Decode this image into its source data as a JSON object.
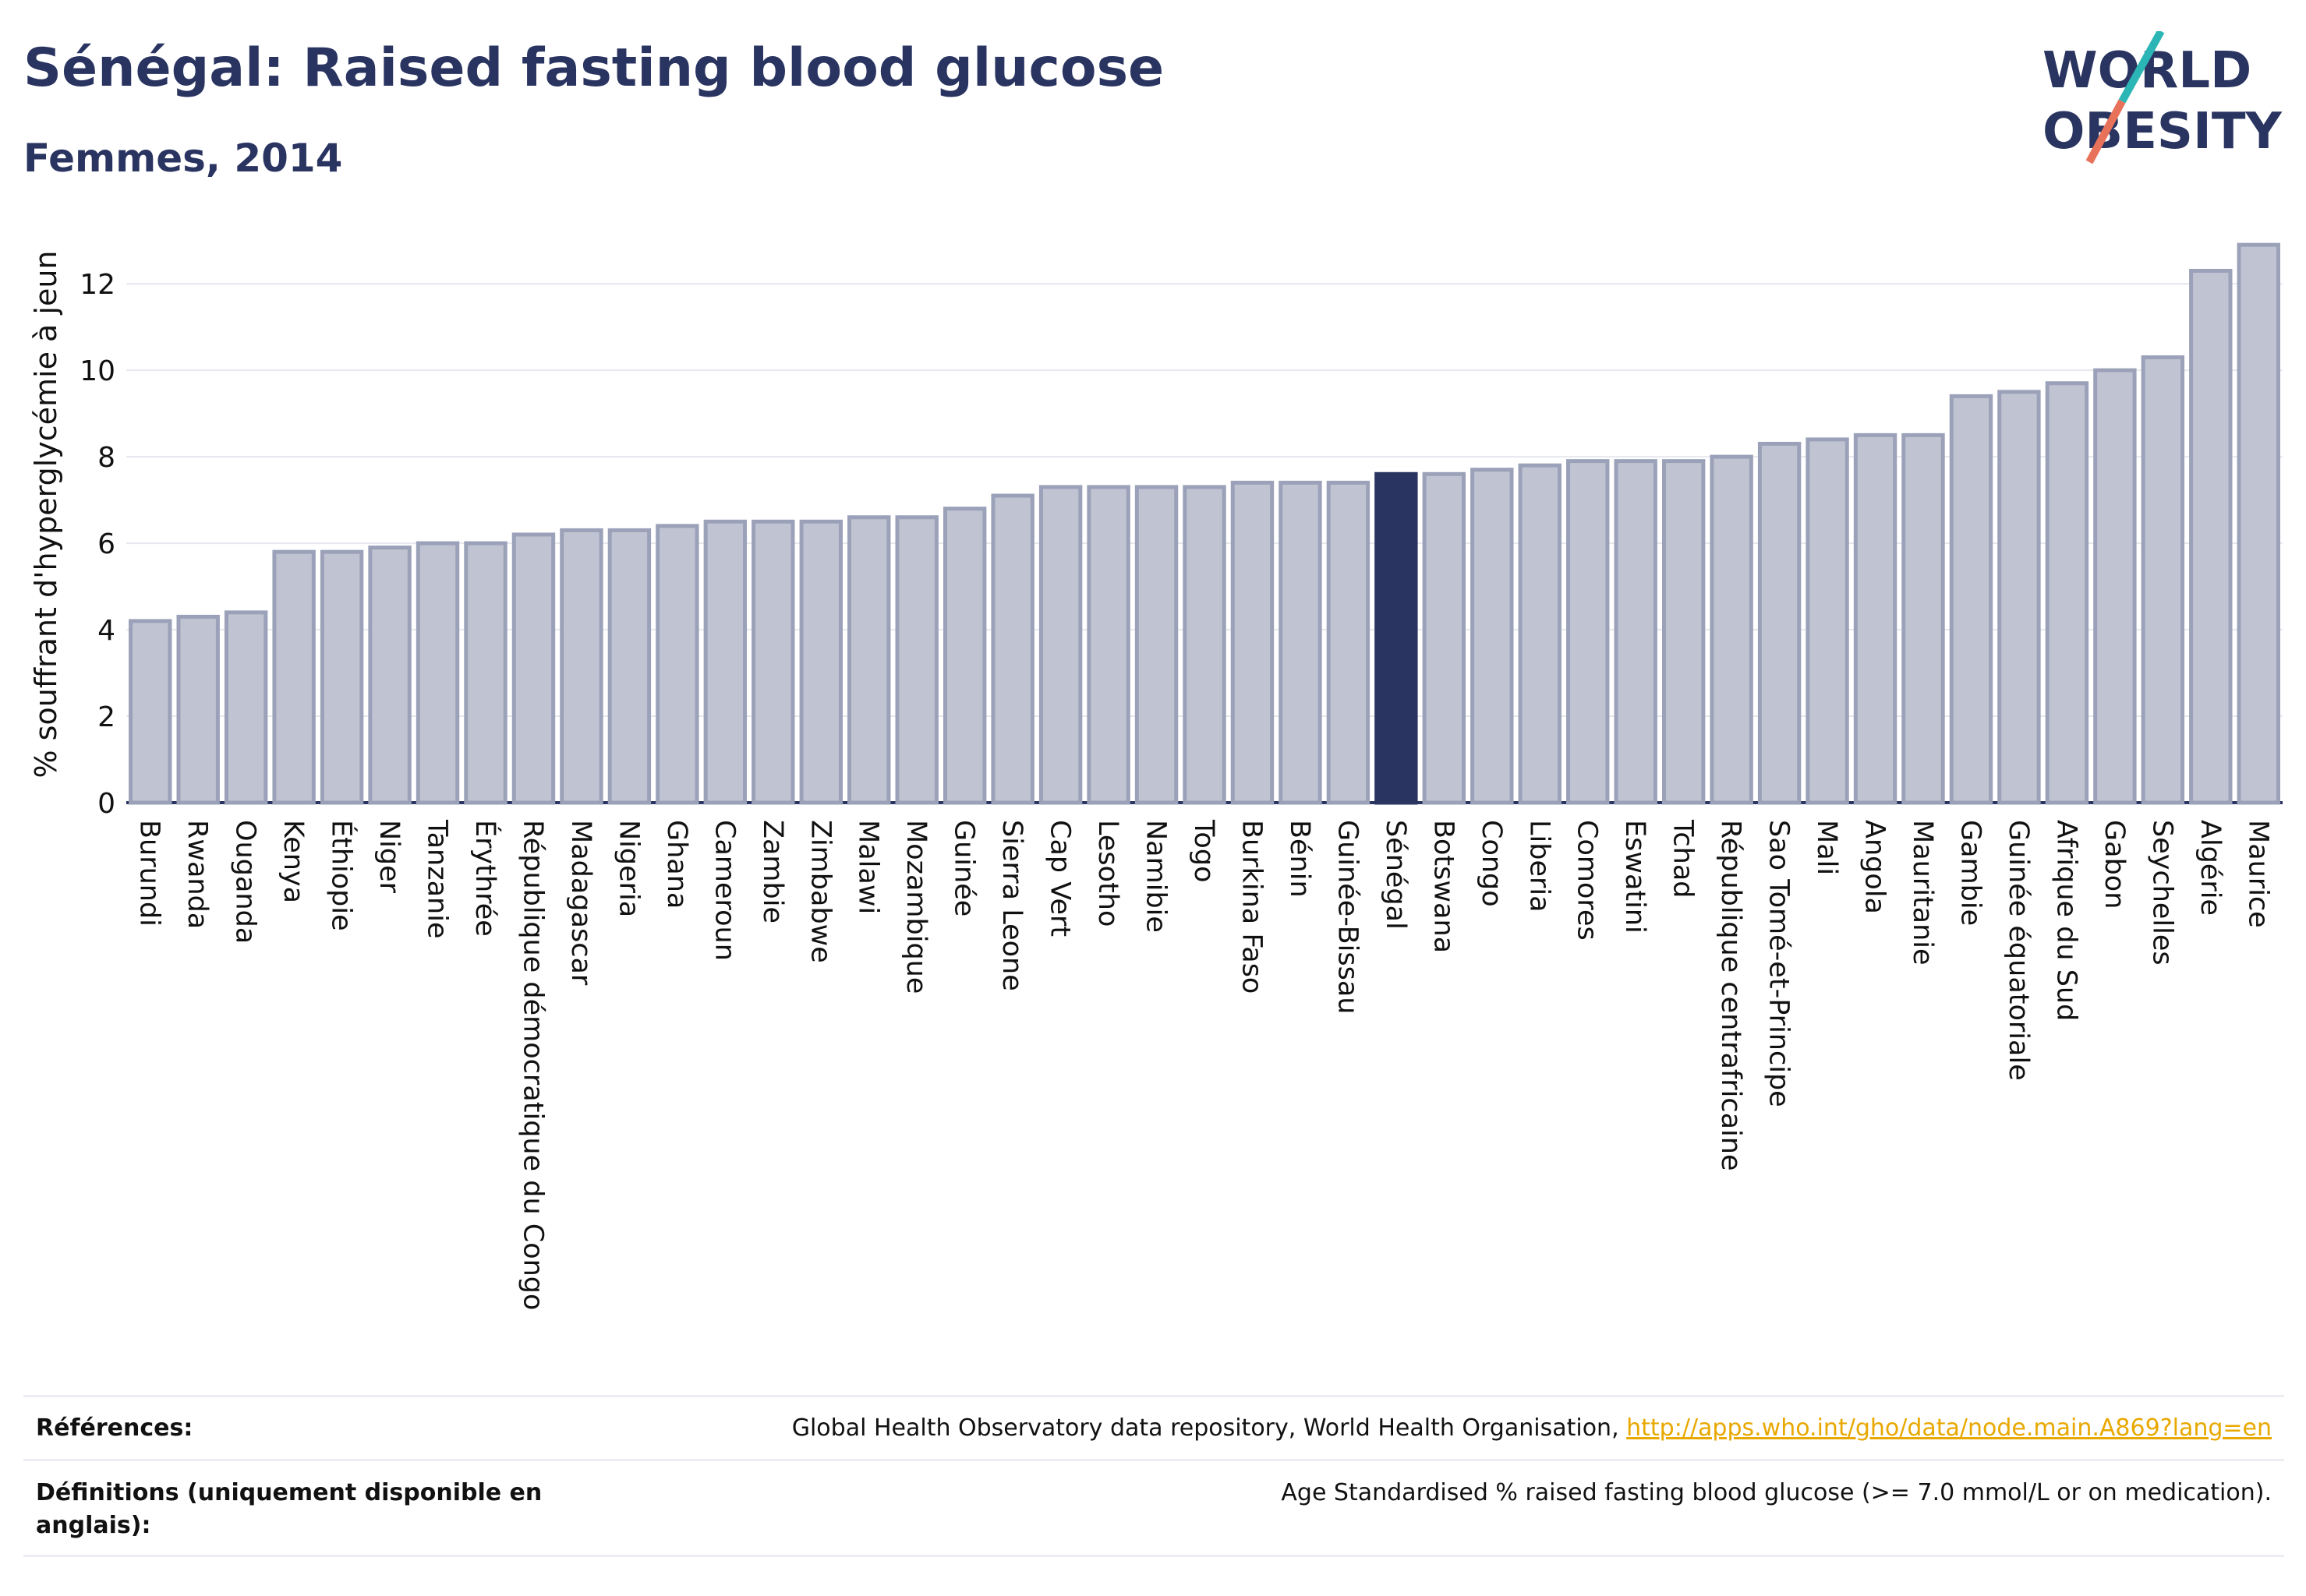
{
  "header": {
    "title": "Sénégal: Raised fasting blood glucose",
    "subtitle": "Femmes, 2014"
  },
  "logo": {
    "line1": "WORLD",
    "line2": "OBESITY",
    "colors": {
      "text": "#2a3461",
      "slash_teal": "#2cb5b5",
      "slash_coral": "#e8715a"
    }
  },
  "chart_data": {
    "type": "bar",
    "ylabel": "% souffrant d'hyperglycémie à jeun",
    "ylim": [
      0,
      13.3
    ],
    "yticks": [
      0,
      2,
      4,
      6,
      8,
      10,
      12
    ],
    "grid": true,
    "highlight": "Sénégal",
    "colors": {
      "bar": "#c0c4d2",
      "bar_border": "#9ba1b8",
      "highlight": "#2a3461"
    },
    "categories": [
      "Burundi",
      "Rwanda",
      "Ouganda",
      "Kenya",
      "Éthiopie",
      "Niger",
      "Tanzanie",
      "Érythrée",
      "République démocratique du Congo",
      "Madagascar",
      "Nigeria",
      "Ghana",
      "Cameroun",
      "Zambie",
      "Zimbabwe",
      "Malawi",
      "Mozambique",
      "Guinée",
      "Sierra Leone",
      "Cap Vert",
      "Lesotho",
      "Namibie",
      "Togo",
      "Burkina Faso",
      "Bénin",
      "Guinée-Bissau",
      "Sénégal",
      "Botswana",
      "Congo",
      "Liberia",
      "Comores",
      "Eswatini",
      "Tchad",
      "République centrafricaine",
      "Sao Tomé-et-Principe",
      "Mali",
      "Angola",
      "Mauritanie",
      "Gambie",
      "Guinée équatoriale",
      "Afrique du Sud",
      "Gabon",
      "Seychelles",
      "Algérie",
      "Maurice"
    ],
    "values": [
      4.2,
      4.3,
      4.4,
      5.8,
      5.8,
      5.9,
      6.0,
      6.0,
      6.2,
      6.3,
      6.3,
      6.4,
      6.5,
      6.5,
      6.5,
      6.6,
      6.6,
      6.8,
      7.1,
      7.3,
      7.3,
      7.3,
      7.3,
      7.4,
      7.4,
      7.4,
      7.6,
      7.6,
      7.7,
      7.8,
      7.9,
      7.9,
      7.9,
      8.0,
      8.3,
      8.4,
      8.5,
      8.5,
      9.4,
      9.5,
      9.7,
      10.0,
      10.3,
      12.3,
      12.9
    ]
  },
  "references": {
    "label": "Références:",
    "source": "Global Health Observatory data repository, World Health Organisation, ",
    "link": "http://apps.who.int/gho/data/node.main.A869?lang=en"
  },
  "definitions": {
    "label": "Définitions (uniquement disponible en anglais):",
    "text": "Age Standardised % raised fasting blood glucose (>= 7.0 mmol/L or on medication)."
  }
}
